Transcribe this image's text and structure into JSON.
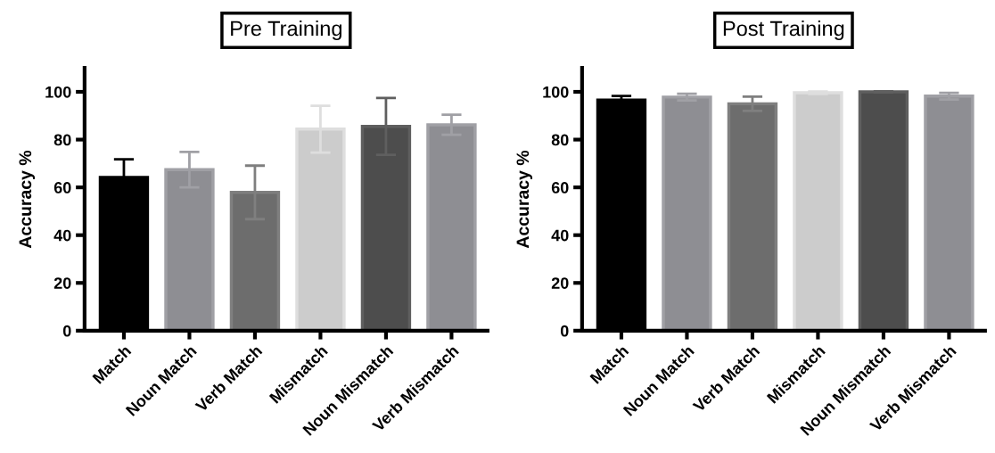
{
  "chart_data": [
    {
      "type": "bar",
      "title": "Pre Training",
      "ylabel": "Accuracy %",
      "categories": [
        "Match",
        "Noun Match",
        "Verb Match",
        "Mismatch",
        "Noun Mismatch",
        "Verb Mismatch"
      ],
      "values": [
        64.2,
        67.4,
        57.9,
        84.4,
        85.5,
        86.2
      ],
      "errors": [
        7.6,
        7.4,
        11.2,
        9.8,
        11.9,
        4.2
      ],
      "colors": [
        "#000000",
        "#8e8e93",
        "#6d6d6d",
        "#cccccc",
        "#4d4d4d",
        "#8e8e93"
      ],
      "ylim": [
        0,
        110
      ],
      "yticks": [
        0,
        20,
        40,
        60,
        80,
        100
      ],
      "grid": false
    },
    {
      "type": "bar",
      "title": "Post Training",
      "ylabel": "Accuracy %",
      "categories": [
        "Match",
        "Noun Match",
        "Verb Match",
        "Mismatch",
        "Noun Mismatch",
        "Verb Mismatch"
      ],
      "values": [
        96.5,
        97.8,
        95.0,
        99.6,
        100,
        98.2
      ],
      "errors": [
        1.8,
        1.4,
        3.0,
        0.5,
        0.2,
        1.4
      ],
      "colors": [
        "#000000",
        "#8e8e93",
        "#6d6d6d",
        "#cccccc",
        "#4d4d4d",
        "#8e8e93"
      ],
      "ylim": [
        0,
        110
      ],
      "yticks": [
        0,
        20,
        40,
        60,
        80,
        100
      ],
      "grid": false
    }
  ]
}
